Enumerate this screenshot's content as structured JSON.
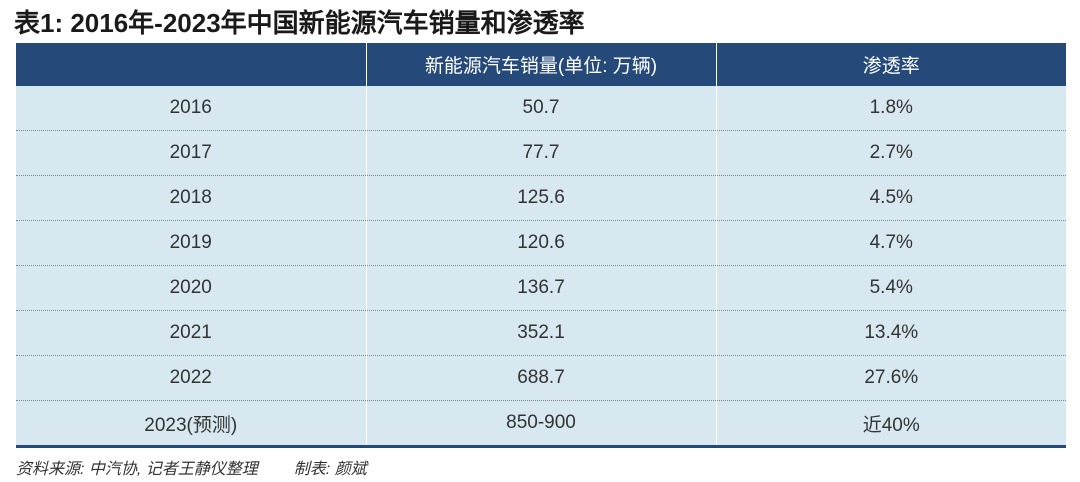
{
  "title": "表1: 2016年-2023年中国新能源汽车销量和渗透率",
  "table": {
    "headers": [
      "",
      "新能源汽车销量(单位: 万辆)",
      "渗透率"
    ],
    "rows": [
      [
        "2016",
        "50.7",
        "1.8%"
      ],
      [
        "2017",
        "77.7",
        "2.7%"
      ],
      [
        "2018",
        "125.6",
        "4.5%"
      ],
      [
        "2019",
        "120.6",
        "4.7%"
      ],
      [
        "2020",
        "136.7",
        "5.4%"
      ],
      [
        "2021",
        "352.1",
        "13.4%"
      ],
      [
        "2022",
        "688.7",
        "27.6%"
      ],
      [
        "2023(预测)",
        "850-900",
        "近40%"
      ]
    ]
  },
  "footer": {
    "source": "资料来源: 中汽协, 记者王静仪整理",
    "maker": "制表: 颜斌"
  },
  "colors": {
    "header_bg": "#254a7a",
    "row_bg": "#d7e8f1",
    "text": "#333333"
  }
}
